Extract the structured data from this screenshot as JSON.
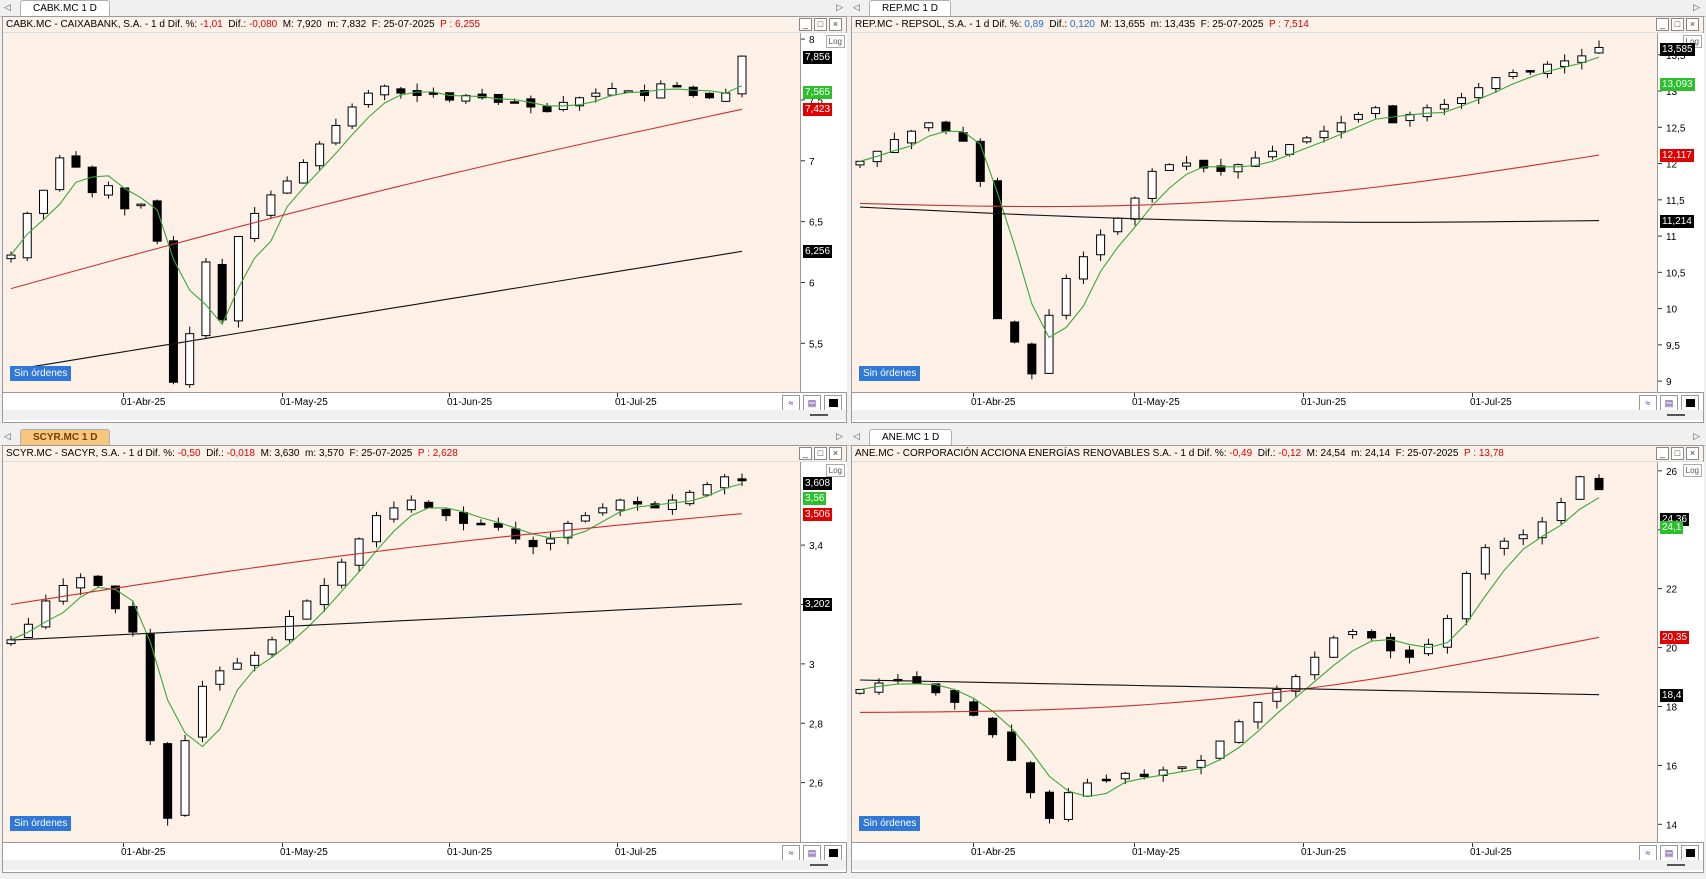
{
  "panes": [
    {
      "id": "cabk",
      "tab_label": "CABK.MC 1 D",
      "tab_active": false,
      "header": {
        "name": "CABK.MC - CAIXABANK, S.A. - 1 d",
        "dif_pct_label": "Dif. %:",
        "dif_pct": "-1,01",
        "dif_label": "Dif.:",
        "dif": "-0,080",
        "max_label": "M:",
        "max": "7,920",
        "min_label": "m:",
        "min": "7,832",
        "date_label": "F:",
        "date": "25-07-2025",
        "p_label": "P :",
        "p": "6,255",
        "dif_color": "red"
      },
      "log_label": "Log",
      "orders_label": "Sin órdenes",
      "x_labels": [
        "01-Abr-25",
        "01-May-25",
        "01-Jun-25",
        "01-Jul-25"
      ],
      "chart_data": {
        "type": "candlestick",
        "y_ticks": [
          5.5,
          6,
          6.5,
          7,
          7.5,
          8
        ],
        "y_tick_labels": [
          "5,5",
          "6",
          "6,5",
          "7",
          "7,5",
          "8"
        ],
        "ylim": [
          5.1,
          8.05
        ],
        "price_tags": [
          {
            "value": 7.856,
            "label": "7,856",
            "color": "#000000",
            "text_color": "#ffffff"
          },
          {
            "value": 7.565,
            "label": "7,565",
            "color": "#2cc02c",
            "text_color": "#ffffff"
          },
          {
            "value": 7.423,
            "label": "7,423",
            "color": "#e00000",
            "text_color": "#ffffff"
          },
          {
            "value": 6.256,
            "label": "6,256",
            "color": "#000000",
            "text_color": "#ffffff"
          }
        ],
        "pattern": [
          0,
          0.18,
          0.28,
          0.42,
          0.38,
          0.27,
          0.3,
          0.2,
          0.22,
          0.06,
          -0.55,
          -0.34,
          -0.03,
          -0.28,
          0.08,
          0.18,
          0.26,
          0.32,
          0.4,
          0.48,
          0.56,
          0.64,
          0.7,
          0.73,
          0.7,
          0.69,
          0.7,
          0.67,
          0.69,
          0.68,
          0.66,
          0.66,
          0.64,
          0.62,
          0.66,
          0.68,
          0.7,
          0.72,
          0.71,
          0.69,
          0.74,
          0.73,
          0.69,
          0.68,
          0.7,
          0.86
        ],
        "pattern_min": 5.18,
        "pattern_max": 7.86,
        "ma_fast_end": 7.565,
        "ma_mid_start": 5.95,
        "ma_mid_end": 7.423,
        "ma_slow_start": 5.28,
        "ma_slow_end": 6.256
      }
    },
    {
      "id": "rep",
      "tab_label": "REP.MC 1 D",
      "tab_active": false,
      "header": {
        "name": "REP.MC - REPSOL, S.A. - 1 d",
        "dif_pct_label": "Dif. %:",
        "dif_pct": "0,89",
        "dif_label": "Dif.:",
        "dif": "0,120",
        "max_label": "M:",
        "max": "13,655",
        "min_label": "m:",
        "min": "13,435",
        "date_label": "F:",
        "date": "25-07-2025",
        "p_label": "P :",
        "p": "7,514",
        "dif_color": "blue"
      },
      "log_label": "Log",
      "orders_label": "Sin órdenes",
      "x_labels": [
        "01-Abr-25",
        "01-May-25",
        "01-Jun-25",
        "01-Jul-25"
      ],
      "chart_data": {
        "type": "candlestick",
        "y_ticks": [
          9,
          9.5,
          10,
          10.5,
          11,
          11.5,
          12,
          12.5,
          13,
          13.5
        ],
        "y_tick_labels": [
          "9",
          "9,5",
          "10",
          "10,5",
          "11",
          "11,5",
          "12",
          "12,5",
          "13",
          "13,5"
        ],
        "ylim": [
          8.85,
          13.8
        ],
        "price_tags": [
          {
            "value": 13.585,
            "label": "13,585",
            "color": "#000000",
            "text_color": "#ffffff"
          },
          {
            "value": 13.093,
            "label": "13,093",
            "color": "#2cc02c",
            "text_color": "#ffffff"
          },
          {
            "value": 12.117,
            "label": "12,117",
            "color": "#e00000",
            "text_color": "#ffffff"
          },
          {
            "value": 11.214,
            "label": "11,214",
            "color": "#000000",
            "text_color": "#ffffff"
          }
        ],
        "pattern": [
          0.32,
          0.38,
          0.45,
          0.5,
          0.55,
          0.5,
          0.44,
          0.2,
          -0.62,
          -0.76,
          -0.95,
          -0.6,
          -0.38,
          -0.25,
          -0.12,
          -0.02,
          0.1,
          0.26,
          0.3,
          0.31,
          0.28,
          0.26,
          0.3,
          0.34,
          0.38,
          0.42,
          0.46,
          0.5,
          0.55,
          0.6,
          0.64,
          0.55,
          0.6,
          0.64,
          0.66,
          0.7,
          0.76,
          0.82,
          0.85,
          0.86,
          0.9,
          0.92,
          0.95,
          1
        ],
        "pattern_min": 9.1,
        "pattern_max": 13.6,
        "ma_fast_end": 13.093,
        "ma_mid_start": 11.45,
        "ma_mid_end": 12.117,
        "ma_slow_start": 11.4,
        "ma_slow_end": 11.214
      }
    },
    {
      "id": "scyr",
      "tab_label": "SCYR.MC 1 D",
      "tab_active": true,
      "header": {
        "name": "SCYR.MC - SACYR, S.A. - 1 d",
        "dif_pct_label": "Dif. %:",
        "dif_pct": "-0,50",
        "dif_label": "Dif.:",
        "dif": "-0,018",
        "max_label": "M:",
        "max": "3,630",
        "min_label": "m:",
        "min": "3,570",
        "date_label": "F:",
        "date": "25-07-2025",
        "p_label": "P :",
        "p": "2,628",
        "dif_color": "red"
      },
      "log_label": "Log",
      "orders_label": "Sin órdenes",
      "x_labels": [
        "01-Abr-25",
        "01-May-25",
        "01-Jun-25",
        "01-Jul-25"
      ],
      "chart_data": {
        "type": "candlestick",
        "y_ticks": [
          2.6,
          2.8,
          3,
          3.2,
          3.4
        ],
        "y_tick_labels": [
          "2,6",
          "2,8",
          "3",
          "3,2",
          "3,4"
        ],
        "ylim": [
          2.4,
          3.68
        ],
        "price_tags": [
          {
            "value": 3.608,
            "label": "3,608",
            "color": "#000000",
            "text_color": "#ffffff"
          },
          {
            "value": 3.56,
            "label": "3,56",
            "color": "#2cc02c",
            "text_color": "#ffffff"
          },
          {
            "value": 3.506,
            "label": "3,506",
            "color": "#e00000",
            "text_color": "#ffffff"
          },
          {
            "value": 3.202,
            "label": "3,202",
            "color": "#000000",
            "text_color": "#ffffff"
          }
        ],
        "pattern": [
          0.56,
          0.6,
          0.66,
          0.7,
          0.72,
          0.7,
          0.64,
          0.58,
          0.3,
          0.1,
          0.3,
          0.44,
          0.48,
          0.5,
          0.52,
          0.56,
          0.62,
          0.66,
          0.7,
          0.76,
          0.82,
          0.88,
          0.9,
          0.92,
          0.9,
          0.88,
          0.86,
          0.86,
          0.85,
          0.82,
          0.8,
          0.82,
          0.86,
          0.88,
          0.9,
          0.92,
          0.91,
          0.9,
          0.92,
          0.94,
          0.96,
          0.98,
          0.97
        ],
        "pattern_min": 2.48,
        "pattern_max": 3.63,
        "ma_fast_end": 3.56,
        "ma_mid_start": 3.2,
        "ma_mid_end": 3.506,
        "ma_slow_start": 3.08,
        "ma_slow_end": 3.202
      }
    },
    {
      "id": "ane",
      "tab_label": "ANE.MC 1 D",
      "tab_active": false,
      "header": {
        "name": "ANE.MC - CORPORACIÓN ACCIONA ENERGÍAS RENOVABLES S.A. - 1 d",
        "dif_pct_label": "Dif. %:",
        "dif_pct": "-0,49",
        "dif_label": "Dif.:",
        "dif": "-0,12",
        "max_label": "M:",
        "max": "24,54",
        "min_label": "m:",
        "min": "24,14",
        "date_label": "F:",
        "date": "25-07-2025",
        "p_label": "P :",
        "p": "13,78",
        "dif_color": "red"
      },
      "log_label": "Log",
      "orders_label": "Sin órdenes",
      "x_labels": [
        "01-Abr-25",
        "01-May-25",
        "01-Jun-25",
        "01-Jul-25"
      ],
      "chart_data": {
        "type": "candlestick",
        "y_ticks": [
          14,
          16,
          18,
          20,
          22,
          24,
          26
        ],
        "y_tick_labels": [
          "14",
          "16",
          "18",
          "20",
          "22",
          "24",
          "26"
        ],
        "ylim": [
          13.4,
          26.3
        ],
        "price_tags": [
          {
            "value": 24.36,
            "label": "24,36",
            "color": "#000000",
            "text_color": "#ffffff"
          },
          {
            "value": 24.1,
            "label": "24,1",
            "color": "#2cc02c",
            "text_color": "#ffffff"
          },
          {
            "value": 20.35,
            "label": "20,35",
            "color": "#e00000",
            "text_color": "#ffffff"
          },
          {
            "value": 18.4,
            "label": "18,4",
            "color": "#000000",
            "text_color": "#ffffff"
          }
        ],
        "pattern": [
          0.34,
          0.36,
          0.37,
          0.36,
          0.33,
          0.3,
          0.26,
          0.2,
          0.12,
          0.02,
          -0.06,
          0.02,
          0.05,
          0.06,
          0.08,
          0.07,
          0.09,
          0.1,
          0.12,
          0.18,
          0.24,
          0.3,
          0.34,
          0.38,
          0.44,
          0.5,
          0.52,
          0.5,
          0.46,
          0.44,
          0.48,
          0.56,
          0.7,
          0.78,
          0.8,
          0.82,
          0.86,
          0.92,
          1,
          0.96
        ],
        "pattern_min": 14.2,
        "pattern_max": 25.8,
        "ma_fast_end": 24.1,
        "ma_mid_start": 17.8,
        "ma_mid_end": 20.35,
        "ma_slow_start": 18.9,
        "ma_slow_end": 18.4
      }
    }
  ]
}
